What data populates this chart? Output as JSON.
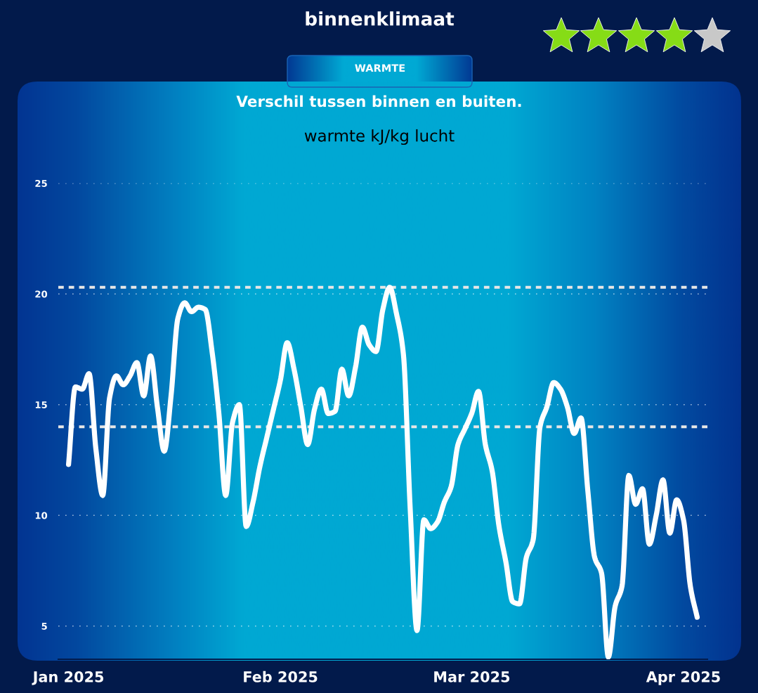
{
  "chart_data": {
    "type": "line",
    "title": "binnenklimaat",
    "subtitle": "Verschil tussen binnen en buiten.",
    "ylabel": "warmte kJ/kg lucht",
    "annotations": [
      "WARMTE"
    ],
    "x": [
      "2025-01-01",
      "2025-01-02",
      "2025-01-03",
      "2025-01-04",
      "2025-01-05",
      "2025-01-06",
      "2025-01-07",
      "2025-01-08",
      "2025-01-09",
      "2025-01-10",
      "2025-01-11",
      "2025-01-12",
      "2025-01-13",
      "2025-01-14",
      "2025-01-15",
      "2025-01-16",
      "2025-01-17",
      "2025-01-18",
      "2025-01-19",
      "2025-01-20",
      "2025-01-21",
      "2025-01-22",
      "2025-01-23",
      "2025-01-24",
      "2025-01-25",
      "2025-01-26",
      "2025-01-27",
      "2025-01-28",
      "2025-01-29",
      "2025-01-30",
      "2025-01-31",
      "2025-02-01",
      "2025-02-02",
      "2025-02-03",
      "2025-02-04",
      "2025-02-05",
      "2025-02-06",
      "2025-02-07",
      "2025-02-08",
      "2025-02-09",
      "2025-02-10",
      "2025-02-11",
      "2025-02-12",
      "2025-02-13",
      "2025-02-14",
      "2025-02-15",
      "2025-02-16",
      "2025-02-17",
      "2025-02-18",
      "2025-02-19",
      "2025-02-20",
      "2025-02-21",
      "2025-02-22",
      "2025-02-23",
      "2025-02-24",
      "2025-02-25",
      "2025-02-26",
      "2025-02-27",
      "2025-02-28",
      "2025-03-01",
      "2025-03-02",
      "2025-03-03",
      "2025-03-04",
      "2025-03-05",
      "2025-03-06",
      "2025-03-07",
      "2025-03-08",
      "2025-03-09",
      "2025-03-10",
      "2025-03-11",
      "2025-03-12",
      "2025-03-13",
      "2025-03-14",
      "2025-03-15",
      "2025-03-16",
      "2025-03-17",
      "2025-03-18",
      "2025-03-19",
      "2025-03-20",
      "2025-03-21",
      "2025-03-22",
      "2025-03-23",
      "2025-03-24",
      "2025-03-25",
      "2025-03-26",
      "2025-03-27",
      "2025-03-28",
      "2025-03-29",
      "2025-03-30",
      "2025-03-31",
      "2025-04-01",
      "2025-04-02",
      "2025-04-03"
    ],
    "series": [
      {
        "color": "#ffffff",
        "values": [
          12.3,
          15.8,
          15.7,
          16.4,
          13.0,
          10.9,
          15.3,
          16.3,
          15.9,
          16.3,
          16.9,
          15.4,
          17.2,
          14.9,
          12.9,
          15.4,
          18.9,
          19.6,
          19.2,
          19.4,
          19.3,
          17.4,
          14.6,
          10.9,
          14.2,
          15.0,
          9.5,
          10.6,
          12.2,
          13.5,
          14.8,
          16.1,
          17.8,
          16.6,
          14.9,
          13.2,
          14.8,
          15.7,
          14.6,
          14.7,
          16.6,
          15.4,
          16.7,
          18.5,
          17.7,
          17.4,
          19.3,
          20.3,
          19.1,
          17.3,
          10.3,
          4.8,
          9.8,
          9.4,
          9.7,
          10.6,
          11.3,
          13.2,
          13.9,
          14.6,
          15.6,
          13.2,
          12.0,
          9.5,
          7.9,
          6.1,
          6.0,
          8.1,
          8.9,
          14.0,
          14.9,
          16.0,
          15.7,
          14.9,
          13.7,
          14.4,
          11.1,
          8.1,
          7.4,
          3.6,
          5.9,
          6.8,
          11.8,
          10.5,
          11.2,
          8.7,
          10.0,
          11.6,
          9.2,
          10.7,
          9.8,
          6.8,
          5.4
        ]
      }
    ],
    "line_style": "solid",
    "xlim": [
      "2024-12-30T12:00",
      "2025-04-04T12:00"
    ],
    "xticks": [
      {
        "value": "2025-01-01",
        "label": "Jan 2025"
      },
      {
        "value": "2025-02-01",
        "label": "Feb 2025"
      },
      {
        "value": "2025-03-01",
        "label": "Mar 2025"
      },
      {
        "value": "2025-04-01",
        "label": "Apr 2025"
      }
    ],
    "ylim": [
      3.5,
      25
    ],
    "yticks": [
      5,
      10,
      15,
      20,
      25
    ],
    "grid": "y",
    "ref_lines": [
      {
        "axis": "y",
        "value": 20.3,
        "color": "#e6e6e6",
        "line_style": "dashed"
      },
      {
        "axis": "y",
        "value": 14.0,
        "color": "#e6e6e6",
        "line_style": "dashed"
      }
    ]
  }
}
